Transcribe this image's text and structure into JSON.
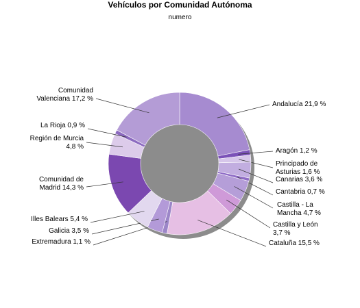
{
  "chart_data": {
    "type": "pie",
    "title": "Vehículos por Comunidad Autónoma",
    "subtitle": "numero",
    "slices": [
      {
        "label": "Andalucía 21,9 %",
        "value": 21.9,
        "color": "#a68bd0"
      },
      {
        "label": "Aragón 1,2 %",
        "value": 1.2,
        "color": "#7b52b8"
      },
      {
        "label": "Principado de Asturias 1,6 %",
        "value": 1.6,
        "color": "#d6c6ea"
      },
      {
        "label": "Canarias 3,6 %",
        "value": 3.6,
        "color": "#c2aee0"
      },
      {
        "label": "Cantabria 0,7 %",
        "value": 0.7,
        "color": "#8f6cc6"
      },
      {
        "label": "Castilla - La Mancha 4,7 %",
        "value": 4.7,
        "color": "#b59ed8"
      },
      {
        "label": "Castilla y León 3,7 %",
        "value": 3.7,
        "color": "#cf9ad8"
      },
      {
        "label": "Cataluña 15,5 %",
        "value": 15.5,
        "color": "#e6bfe4"
      },
      {
        "label": "Extremadura 1,1 %",
        "value": 1.1,
        "color": "#9c86c8"
      },
      {
        "label": "Galicia 3,5 %",
        "value": 3.5,
        "color": "#b39ad8"
      },
      {
        "label": "Illes Balears 5,4 %",
        "value": 5.4,
        "color": "#e2d8ef"
      },
      {
        "label": "Comunidad de Madrid 14,3 %",
        "value": 14.3,
        "color": "#7b48b0"
      },
      {
        "label": "Región de Murcia 4,8 %",
        "value": 4.8,
        "color": "#dccbea"
      },
      {
        "label": "La Rioja 0,9 %",
        "value": 0.9,
        "color": "#8c6ac0"
      },
      {
        "label": "Comunidad Valenciana 17,2 %",
        "value": 17.2,
        "color": "#b49cd6"
      }
    ],
    "legend": "none"
  }
}
